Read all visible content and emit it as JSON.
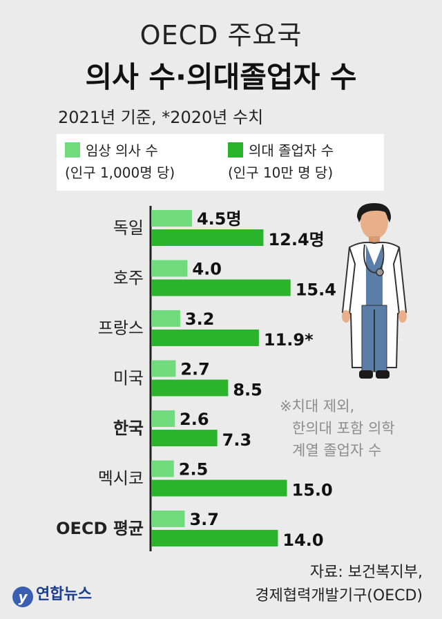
{
  "header": {
    "title_line1": "OECD 주요국",
    "title_line2": "의사 수·의대졸업자 수",
    "subtitle": "2021년 기준, *2020년 수치"
  },
  "legend": {
    "series1_label": "임상 의사 수",
    "series1_unit": "(인구 1,000명 당)",
    "series2_label": "의대 졸업자 수",
    "series2_unit": "(인구 10만 명 당)"
  },
  "colors": {
    "series1": "#6fdb7c",
    "series2": "#2cb32c",
    "axis": "#222222"
  },
  "chart_data": {
    "type": "bar",
    "orientation": "horizontal",
    "categories": [
      "독일",
      "호주",
      "프랑스",
      "미국",
      "한국",
      "멕시코",
      "OECD 평균"
    ],
    "bold_categories": [
      "한국",
      "OECD 평균"
    ],
    "series": [
      {
        "name": "임상 의사 수",
        "values": [
          4.5,
          4.0,
          3.2,
          2.7,
          2.6,
          2.5,
          3.7
        ],
        "labels": [
          "4.5명",
          "4.0",
          "3.2",
          "2.7",
          "2.6",
          "2.5",
          "3.7"
        ]
      },
      {
        "name": "의대 졸업자 수",
        "values": [
          12.4,
          15.4,
          11.9,
          8.5,
          7.3,
          15.0,
          14.0
        ],
        "labels": [
          "12.4명",
          "15.4",
          "11.9*",
          "8.5",
          "7.3",
          "15.0",
          "14.0"
        ]
      }
    ]
  },
  "note": {
    "line1": "※치대 제외,",
    "line2": "한의대 포함 의학",
    "line3": "계열 졸업자 수"
  },
  "source": {
    "line1": "자료: 보건복지부,",
    "line2": "경제협력개발기구(OECD)"
  },
  "logo": {
    "text": "연합뉴스"
  }
}
